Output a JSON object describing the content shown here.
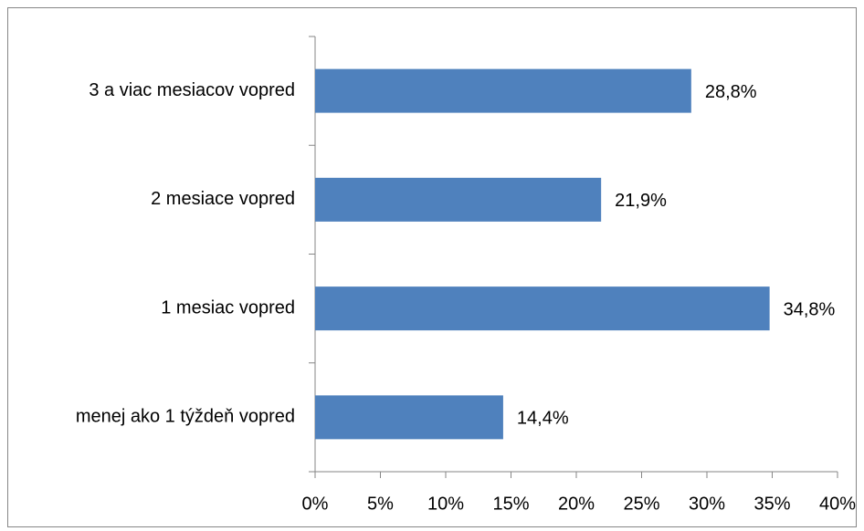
{
  "chart_data": {
    "type": "barh",
    "categories": [
      "3 a viac mesiacov vopred",
      "2 mesiace vopred",
      "1 mesiac vopred",
      "menej ako 1 týždeň vopred"
    ],
    "values": [
      28.8,
      21.9,
      34.8,
      14.4
    ],
    "value_labels": [
      "28,8%",
      "21,9%",
      "34,8%",
      "14,4%"
    ],
    "color": "#4f81bd",
    "xlim": [
      0,
      40
    ],
    "xticks": [
      {
        "value": 0,
        "label": "0%"
      },
      {
        "value": 5,
        "label": "5%"
      },
      {
        "value": 10,
        "label": "10%"
      },
      {
        "value": 15,
        "label": "15%"
      },
      {
        "value": 20,
        "label": "20%"
      },
      {
        "value": 25,
        "label": "25%"
      },
      {
        "value": 30,
        "label": "30%"
      },
      {
        "value": 35,
        "label": "35%"
      },
      {
        "value": 40,
        "label": "40%"
      }
    ],
    "grid": false
  }
}
